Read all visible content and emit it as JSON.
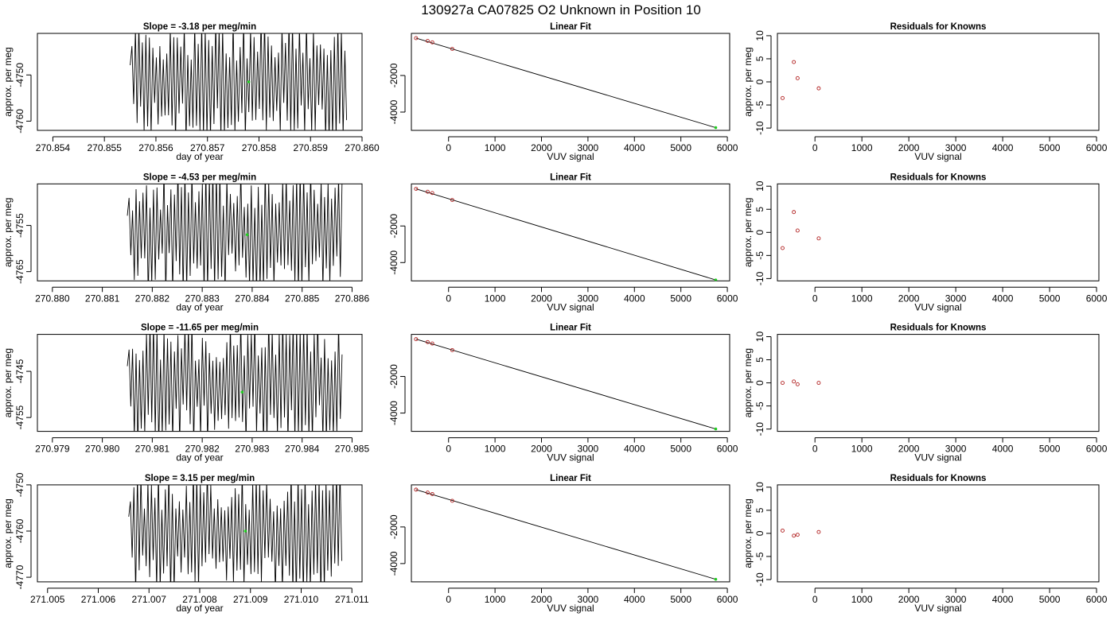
{
  "title": "130927a      CA07825   O2 Unknown in Position  10",
  "colors": {
    "trace": "#000000",
    "fit_line": "#000000",
    "known_points": "#b22222",
    "unknown_point": "#22cc22",
    "axis": "#000000"
  },
  "chart_data": [
    {
      "type": "line",
      "row": 1,
      "column": "time_series",
      "title": "Slope =  -3.18  per meg/min",
      "xlabel": "day of year",
      "ylabel": "approx. per meg",
      "xlim": [
        270.8537,
        270.86
      ],
      "ylim": [
        -4762,
        -4741
      ],
      "xticks": [
        270.854,
        270.855,
        270.856,
        270.857,
        270.858,
        270.859,
        270.86
      ],
      "xtick_labels": [
        "270.854",
        "270.855",
        "270.856",
        "270.857",
        "270.858",
        "270.859",
        "270.860"
      ],
      "yticks": [
        -4760,
        -4750
      ],
      "ytick_labels": [
        "-4760",
        "-4750"
      ],
      "trace_x_range": [
        270.8555,
        270.8597
      ],
      "marker": {
        "x": 270.8578,
        "y": -4751.5
      }
    },
    {
      "type": "scatter",
      "row": 1,
      "column": "linear_fit",
      "title": "Linear Fit",
      "xlabel": "VUV signal",
      "ylabel": "",
      "xlim": [
        -800,
        6050
      ],
      "ylim": [
        -5000,
        300
      ],
      "xticks": [
        0,
        1000,
        2000,
        3000,
        4000,
        5000,
        6000
      ],
      "xtick_labels": [
        "0",
        "1000",
        "2000",
        "3000",
        "4000",
        "5000",
        "6000"
      ],
      "yticks": [
        -4000,
        -2000
      ],
      "ytick_labels": [
        "-4000",
        "-2000"
      ],
      "knowns": [
        {
          "x": -700,
          "y": 40
        },
        {
          "x": -450,
          "y": -110
        },
        {
          "x": -350,
          "y": -190
        },
        {
          "x": 80,
          "y": -550
        }
      ],
      "unknown": {
        "x": 5750,
        "y": -4850
      },
      "fit": {
        "x0": -700,
        "y0": 40,
        "x1": 5750,
        "y1": -4850
      }
    },
    {
      "type": "scatter",
      "row": 1,
      "column": "residuals",
      "title": "Residuals for Knowns",
      "xlabel": "VUV signal",
      "ylabel": "approx. per meg",
      "xlim": [
        -800,
        6050
      ],
      "ylim": [
        -10.5,
        10.5
      ],
      "xticks": [
        0,
        1000,
        2000,
        3000,
        4000,
        5000,
        6000
      ],
      "xtick_labels": [
        "0",
        "1000",
        "2000",
        "3000",
        "4000",
        "5000",
        "6000"
      ],
      "yticks": [
        -10,
        -5,
        0,
        5,
        10
      ],
      "ytick_labels": [
        "-10",
        "-5",
        "0",
        "5",
        "10"
      ],
      "points": [
        {
          "x": -690,
          "y": -3.5
        },
        {
          "x": -450,
          "y": 4.3
        },
        {
          "x": -370,
          "y": 0.8
        },
        {
          "x": 80,
          "y": -1.4
        }
      ]
    },
    {
      "type": "line",
      "row": 2,
      "column": "time_series",
      "title": "Slope =  -4.53  per meg/min",
      "xlabel": "day of year",
      "ylabel": "approx. per meg",
      "xlim": [
        270.8797,
        270.8862
      ],
      "ylim": [
        -4767,
        -4746
      ],
      "xticks": [
        270.88,
        270.881,
        270.882,
        270.883,
        270.884,
        270.885,
        270.886
      ],
      "xtick_labels": [
        "270.880",
        "270.881",
        "270.882",
        "270.883",
        "270.884",
        "270.885",
        "270.886"
      ],
      "yticks": [
        -4765,
        -4755
      ],
      "ytick_labels": [
        "-4765",
        "-4755"
      ],
      "trace_x_range": [
        270.8815,
        270.8858
      ],
      "marker": {
        "x": 270.8839,
        "y": -4757
      }
    },
    {
      "type": "scatter",
      "row": 2,
      "column": "linear_fit",
      "title": "Linear Fit",
      "xlabel": "VUV signal",
      "ylabel": "",
      "xlim": [
        -800,
        6050
      ],
      "ylim": [
        -5000,
        300
      ],
      "xticks": [
        0,
        1000,
        2000,
        3000,
        4000,
        5000,
        6000
      ],
      "xtick_labels": [
        "0",
        "1000",
        "2000",
        "3000",
        "4000",
        "5000",
        "6000"
      ],
      "yticks": [
        -4000,
        -2000
      ],
      "ytick_labels": [
        "-4000",
        "-2000"
      ],
      "knowns": [
        {
          "x": -700,
          "y": 30
        },
        {
          "x": -450,
          "y": -130
        },
        {
          "x": -350,
          "y": -200
        },
        {
          "x": 80,
          "y": -580
        }
      ],
      "unknown": {
        "x": 5750,
        "y": -4950
      },
      "fit": {
        "x0": -700,
        "y0": 30,
        "x1": 5750,
        "y1": -4950
      }
    },
    {
      "type": "scatter",
      "row": 2,
      "column": "residuals",
      "title": "Residuals for Knowns",
      "xlabel": "VUV signal",
      "ylabel": "approx. per meg",
      "xlim": [
        -800,
        6050
      ],
      "ylim": [
        -10.5,
        10.5
      ],
      "xticks": [
        0,
        1000,
        2000,
        3000,
        4000,
        5000,
        6000
      ],
      "xtick_labels": [
        "0",
        "1000",
        "2000",
        "3000",
        "4000",
        "5000",
        "6000"
      ],
      "yticks": [
        -10,
        -5,
        0,
        5,
        10
      ],
      "ytick_labels": [
        "-10",
        "-5",
        "0",
        "5",
        "10"
      ],
      "points": [
        {
          "x": -690,
          "y": -3.4
        },
        {
          "x": -450,
          "y": 4.4
        },
        {
          "x": -370,
          "y": 0.4
        },
        {
          "x": 80,
          "y": -1.3
        }
      ]
    },
    {
      "type": "line",
      "row": 3,
      "column": "time_series",
      "title": "Slope =  -11.65  per meg/min",
      "xlabel": "day of year",
      "ylabel": "approx. per meg",
      "xlim": [
        270.9787,
        270.9852
      ],
      "ylim": [
        -4758,
        -4737
      ],
      "xticks": [
        270.979,
        270.98,
        270.981,
        270.982,
        270.983,
        270.984,
        270.985
      ],
      "xtick_labels": [
        "270.979",
        "270.980",
        "270.981",
        "270.982",
        "270.983",
        "270.984",
        "270.985"
      ],
      "yticks": [
        -4755,
        -4745
      ],
      "ytick_labels": [
        "-4755",
        "-4745"
      ],
      "trace_x_range": [
        270.9805,
        270.9848
      ],
      "marker": {
        "x": 270.9828,
        "y": -4749.5
      }
    },
    {
      "type": "scatter",
      "row": 3,
      "column": "linear_fit",
      "title": "Linear Fit",
      "xlabel": "VUV signal",
      "ylabel": "",
      "xlim": [
        -800,
        6050
      ],
      "ylim": [
        -5000,
        300
      ],
      "xticks": [
        0,
        1000,
        2000,
        3000,
        4000,
        5000,
        6000
      ],
      "xtick_labels": [
        "0",
        "1000",
        "2000",
        "3000",
        "4000",
        "5000",
        "6000"
      ],
      "yticks": [
        -4000,
        -2000
      ],
      "ytick_labels": [
        "-4000",
        "-2000"
      ],
      "knowns": [
        {
          "x": -700,
          "y": 40
        },
        {
          "x": -450,
          "y": -120
        },
        {
          "x": -350,
          "y": -200
        },
        {
          "x": 80,
          "y": -560
        }
      ],
      "unknown": {
        "x": 5750,
        "y": -4870
      },
      "fit": {
        "x0": -700,
        "y0": 40,
        "x1": 5750,
        "y1": -4870
      }
    },
    {
      "type": "scatter",
      "row": 3,
      "column": "residuals",
      "title": "Residuals for Knowns",
      "xlabel": "VUV signal",
      "ylabel": "approx. per meg",
      "xlim": [
        -800,
        6050
      ],
      "ylim": [
        -10.5,
        10.5
      ],
      "xticks": [
        0,
        1000,
        2000,
        3000,
        4000,
        5000,
        6000
      ],
      "xtick_labels": [
        "0",
        "1000",
        "2000",
        "3000",
        "4000",
        "5000",
        "6000"
      ],
      "yticks": [
        -10,
        -5,
        0,
        5,
        10
      ],
      "ytick_labels": [
        "-10",
        "-5",
        "0",
        "5",
        "10"
      ],
      "points": [
        {
          "x": -690,
          "y": 0.0
        },
        {
          "x": -450,
          "y": 0.3
        },
        {
          "x": -370,
          "y": -0.3
        },
        {
          "x": 80,
          "y": 0.0
        }
      ]
    },
    {
      "type": "line",
      "row": 4,
      "column": "time_series",
      "title": "Slope =  3.15  per meg/min",
      "xlabel": "day of year",
      "ylabel": "approx. per meg",
      "xlim": [
        271.0048,
        271.0112
      ],
      "ylim": [
        -4771,
        -4750
      ],
      "xticks": [
        271.005,
        271.006,
        271.007,
        271.008,
        271.009,
        271.01,
        271.011
      ],
      "xtick_labels": [
        "271.005",
        "271.006",
        "271.007",
        "271.008",
        "271.009",
        "271.010",
        "271.011"
      ],
      "yticks": [
        -4770,
        -4760,
        -4750
      ],
      "ytick_labels": [
        "-4770",
        "-4760",
        "-4750"
      ],
      "trace_x_range": [
        271.0066,
        271.0108
      ],
      "marker": {
        "x": 271.0089,
        "y": -4760
      }
    },
    {
      "type": "scatter",
      "row": 4,
      "column": "linear_fit",
      "title": "Linear Fit",
      "xlabel": "VUV signal",
      "ylabel": "",
      "xlim": [
        -800,
        6050
      ],
      "ylim": [
        -5000,
        300
      ],
      "xticks": [
        0,
        1000,
        2000,
        3000,
        4000,
        5000,
        6000
      ],
      "xtick_labels": [
        "0",
        "1000",
        "2000",
        "3000",
        "4000",
        "5000",
        "6000"
      ],
      "yticks": [
        -4000,
        -2000
      ],
      "ytick_labels": [
        "-4000",
        "-2000"
      ],
      "knowns": [
        {
          "x": -700,
          "y": 40
        },
        {
          "x": -450,
          "y": -120
        },
        {
          "x": -350,
          "y": -200
        },
        {
          "x": 80,
          "y": -570
        }
      ],
      "unknown": {
        "x": 5750,
        "y": -4860
      },
      "fit": {
        "x0": -700,
        "y0": 40,
        "x1": 5750,
        "y1": -4860
      }
    },
    {
      "type": "scatter",
      "row": 4,
      "column": "residuals",
      "title": "Residuals for Knowns",
      "xlabel": "VUV signal",
      "ylabel": "approx. per meg",
      "xlim": [
        -800,
        6050
      ],
      "ylim": [
        -10.5,
        10.5
      ],
      "xticks": [
        0,
        1000,
        2000,
        3000,
        4000,
        5000,
        6000
      ],
      "xtick_labels": [
        "0",
        "1000",
        "2000",
        "3000",
        "4000",
        "5000",
        "6000"
      ],
      "yticks": [
        -10,
        -5,
        0,
        5,
        10
      ],
      "ytick_labels": [
        "-10",
        "-5",
        "0",
        "5",
        "10"
      ],
      "points": [
        {
          "x": -690,
          "y": 0.6
        },
        {
          "x": -450,
          "y": -0.5
        },
        {
          "x": -370,
          "y": -0.3
        },
        {
          "x": 80,
          "y": 0.3
        }
      ]
    }
  ]
}
